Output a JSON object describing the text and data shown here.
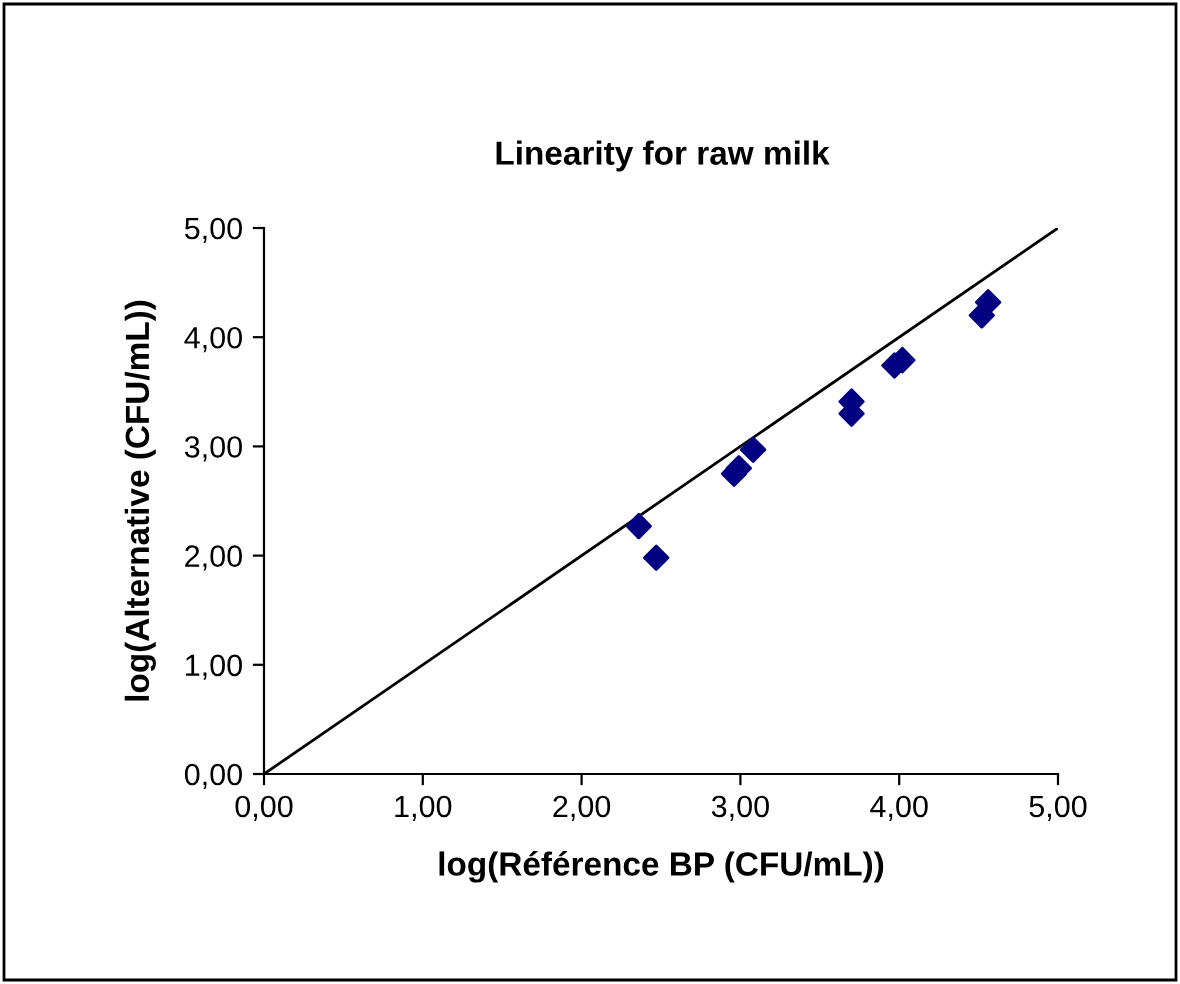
{
  "chart_data": {
    "type": "scatter",
    "title": "Linearity for raw milk",
    "xlabel": "log(Référence BP (CFU/mL))",
    "ylabel": "log(Alternative (CFU/mL))",
    "series": [
      {
        "color": "#000080",
        "marker": "diamond",
        "x": [
          2.36,
          2.47,
          2.96,
          2.99,
          3.08,
          3.7,
          3.7,
          3.97,
          4.02,
          4.52,
          4.56
        ],
        "values": [
          2.27,
          1.98,
          2.75,
          2.8,
          2.97,
          3.3,
          3.41,
          3.74,
          3.79,
          4.2,
          4.32
        ]
      },
      {
        "type": "line",
        "color": "#000000",
        "marker": "none",
        "line_style": "solid",
        "x": [
          0,
          5
        ],
        "values": [
          0,
          5
        ]
      }
    ],
    "xlim": [
      0,
      5
    ],
    "ylim": [
      0,
      5
    ],
    "xticks": [
      {
        "value": 0,
        "label": "0,00"
      },
      {
        "value": 1,
        "label": "1,00"
      },
      {
        "value": 2,
        "label": "2,00"
      },
      {
        "value": 3,
        "label": "3,00"
      },
      {
        "value": 4,
        "label": "4,00"
      },
      {
        "value": 5,
        "label": "5,00"
      }
    ],
    "yticks": [
      {
        "value": 0,
        "label": "0,00"
      },
      {
        "value": 1,
        "label": "1,00"
      },
      {
        "value": 2,
        "label": "2,00"
      },
      {
        "value": 3,
        "label": "3,00"
      },
      {
        "value": 4,
        "label": "4,00"
      },
      {
        "value": 5,
        "label": "5,00"
      }
    ],
    "grid": false,
    "legend": false
  }
}
